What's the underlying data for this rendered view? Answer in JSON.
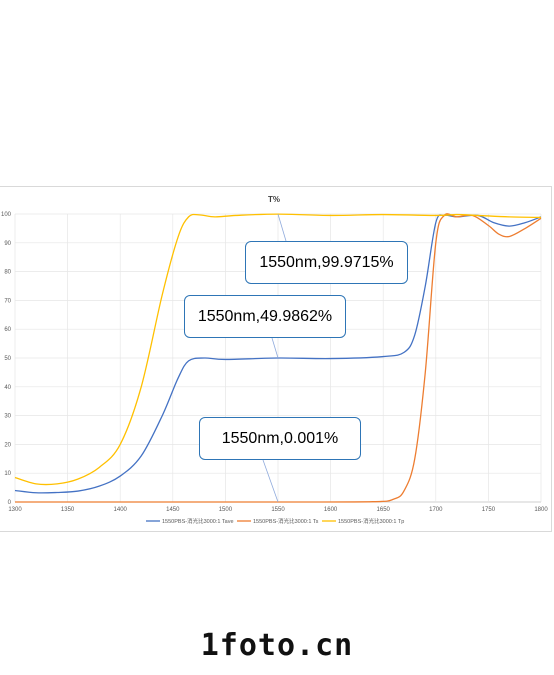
{
  "chart_data": {
    "type": "line",
    "title": "T%",
    "xlim": [
      1300,
      1800
    ],
    "ylim": [
      0,
      100
    ],
    "xticks": [
      "1300",
      "1350",
      "1400",
      "1450",
      "1500",
      "1550",
      "1600",
      "1650",
      "1700",
      "1750",
      "1800"
    ],
    "yticks": [
      "0",
      "10",
      "20",
      "30",
      "40",
      "50",
      "60",
      "70",
      "80",
      "90",
      "100"
    ],
    "grid": true,
    "legend_position": "bottom",
    "series": [
      {
        "name": "1550PBS-消光比3000:1 Tave",
        "color": "#4472c4",
        "points": [
          [
            1300,
            4
          ],
          [
            1320,
            3.2
          ],
          [
            1340,
            3.3
          ],
          [
            1360,
            3.8
          ],
          [
            1380,
            5.5
          ],
          [
            1400,
            9
          ],
          [
            1420,
            16
          ],
          [
            1440,
            30
          ],
          [
            1455,
            43
          ],
          [
            1465,
            49
          ],
          [
            1480,
            50
          ],
          [
            1500,
            49.5
          ],
          [
            1550,
            49.99
          ],
          [
            1600,
            49.8
          ],
          [
            1650,
            50.5
          ],
          [
            1670,
            52
          ],
          [
            1680,
            58
          ],
          [
            1690,
            75
          ],
          [
            1700,
            97
          ],
          [
            1708,
            99.5
          ],
          [
            1720,
            99
          ],
          [
            1740,
            99.5
          ],
          [
            1755,
            97
          ],
          [
            1770,
            95.8
          ],
          [
            1785,
            97
          ],
          [
            1800,
            99
          ]
        ]
      },
      {
        "name": "1550PBS-消光比3000:1 Ts",
        "color": "#ed7d31",
        "points": [
          [
            1300,
            0
          ],
          [
            1400,
            0
          ],
          [
            1550,
            0.001
          ],
          [
            1640,
            0.1
          ],
          [
            1660,
            1
          ],
          [
            1670,
            4
          ],
          [
            1680,
            15
          ],
          [
            1690,
            45
          ],
          [
            1700,
            90
          ],
          [
            1708,
            99.5
          ],
          [
            1720,
            99
          ],
          [
            1735,
            99.5
          ],
          [
            1750,
            96
          ],
          [
            1760,
            93
          ],
          [
            1770,
            92.2
          ],
          [
            1785,
            95
          ],
          [
            1800,
            98.5
          ]
        ]
      },
      {
        "name": "1550PBS-消光比3000:1 Tp",
        "color": "#ffc000",
        "points": [
          [
            1300,
            8.5
          ],
          [
            1320,
            6.3
          ],
          [
            1340,
            6.3
          ],
          [
            1360,
            8
          ],
          [
            1380,
            12
          ],
          [
            1400,
            20
          ],
          [
            1420,
            40
          ],
          [
            1440,
            72
          ],
          [
            1455,
            92
          ],
          [
            1465,
            99
          ],
          [
            1475,
            99.7
          ],
          [
            1490,
            99
          ],
          [
            1510,
            99.5
          ],
          [
            1550,
            99.97
          ],
          [
            1600,
            99.5
          ],
          [
            1650,
            99.8
          ],
          [
            1700,
            99.5
          ],
          [
            1720,
            99.8
          ],
          [
            1740,
            99.5
          ],
          [
            1770,
            99
          ],
          [
            1800,
            98.8
          ]
        ]
      }
    ],
    "annotations": [
      {
        "text": "1550nm,99.9715%",
        "x": 1550,
        "y": 99.9715
      },
      {
        "text": "1550nm,49.9862%",
        "x": 1550,
        "y": 49.9862
      },
      {
        "text": "1550nm,0.001%",
        "x": 1550,
        "y": 0.001
      }
    ]
  },
  "watermark": "1foto.cn"
}
